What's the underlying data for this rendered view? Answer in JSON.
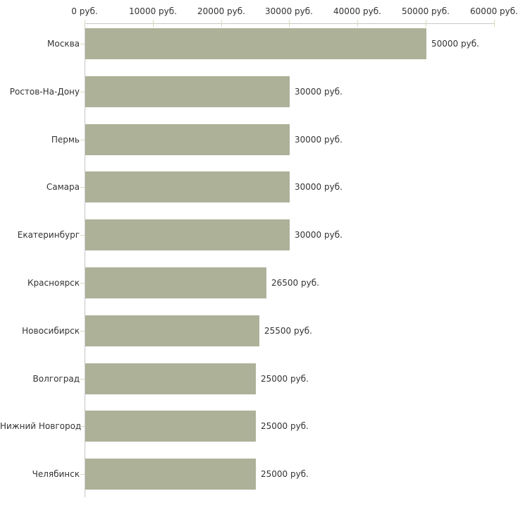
{
  "chart_data": {
    "type": "bar",
    "orientation": "horizontal",
    "title": "",
    "xlabel": "",
    "ylabel": "",
    "x_axis": {
      "position": "top",
      "range": [
        0,
        60000
      ],
      "ticks": [
        0,
        10000,
        20000,
        30000,
        40000,
        50000,
        60000
      ],
      "tick_labels": [
        "0 руб.",
        "10000 руб.",
        "20000 руб.",
        "30000 руб.",
        "40000 руб.",
        "50000 руб.",
        "60000 руб."
      ]
    },
    "categories": [
      "Москва",
      "Ростов-На-Дону",
      "Пермь",
      "Самара",
      "Екатеринбург",
      "Красноярск",
      "Новосибирск",
      "Волгоград",
      "Нижний Новгород",
      "Челябинск"
    ],
    "values": [
      50000,
      30000,
      30000,
      30000,
      30000,
      26500,
      25500,
      25000,
      25000,
      25000
    ],
    "value_labels": [
      "50000 руб.",
      "30000 руб.",
      "30000 руб.",
      "30000 руб.",
      "30000 руб.",
      "26500 руб.",
      "25500 руб.",
      "25000 руб.",
      "25000 руб.",
      "25000 руб."
    ],
    "grid": false,
    "legend": false,
    "colors": {
      "bar": "#acb198",
      "axis_line": "#c8c8c8",
      "tick": "#d9d9be",
      "text": "#333333",
      "background": "#ffffff"
    }
  }
}
